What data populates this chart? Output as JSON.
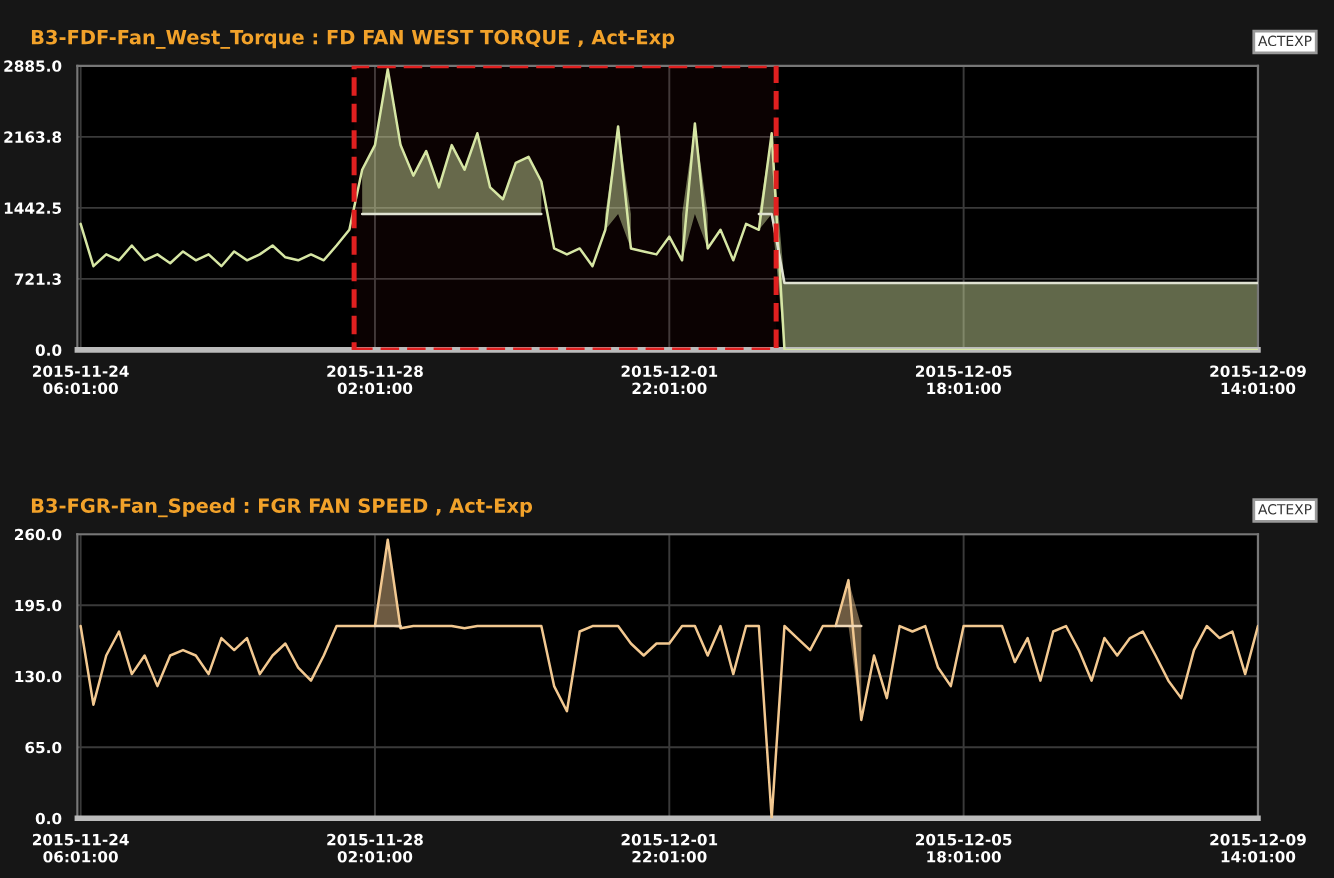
{
  "chart_data": [
    {
      "type": "line",
      "title": "B3-FDF-Fan_West_Torque : FD FAN WEST TORQUE , Act-Exp",
      "annotations": [
        "ACTEXP"
      ],
      "grid": true,
      "x": [
        "2015-11-24T06:01",
        "2015-11-24T10:01",
        "2015-11-24T14:01",
        "2015-11-24T18:01",
        "2015-11-24T22:01",
        "2015-11-25T02:01",
        "2015-11-25T06:01",
        "2015-11-25T10:01",
        "2015-11-25T14:01",
        "2015-11-25T18:01",
        "2015-11-25T22:01",
        "2015-11-26T02:01",
        "2015-11-26T06:01",
        "2015-11-26T10:01",
        "2015-11-26T14:01",
        "2015-11-26T18:01",
        "2015-11-26T22:01",
        "2015-11-27T02:01",
        "2015-11-27T06:01",
        "2015-11-27T10:01",
        "2015-11-27T14:01",
        "2015-11-27T18:01",
        "2015-11-27T22:01",
        "2015-11-28T02:01",
        "2015-11-28T06:01",
        "2015-11-28T10:01",
        "2015-11-28T14:01",
        "2015-11-28T18:01",
        "2015-11-28T22:01",
        "2015-11-29T02:01",
        "2015-11-29T06:01",
        "2015-11-29T10:01",
        "2015-11-29T14:01",
        "2015-11-29T18:01",
        "2015-11-29T22:01",
        "2015-11-30T02:01",
        "2015-11-30T06:01",
        "2015-11-30T10:01",
        "2015-11-30T14:01",
        "2015-11-30T18:01",
        "2015-11-30T22:01",
        "2015-12-01T02:01",
        "2015-12-01T06:01",
        "2015-12-01T10:01",
        "2015-12-01T14:01",
        "2015-12-01T18:01",
        "2015-12-01T22:01",
        "2015-12-02T02:01",
        "2015-12-02T06:01",
        "2015-12-02T10:01",
        "2015-12-02T14:01",
        "2015-12-02T18:01",
        "2015-12-02T22:01",
        "2015-12-03T02:01",
        "2015-12-03T06:01",
        "2015-12-03T10:01",
        "2015-12-03T14:01",
        "2015-12-03T18:01",
        "2015-12-03T22:01",
        "2015-12-04T02:01",
        "2015-12-04T06:01",
        "2015-12-04T10:01",
        "2015-12-04T14:01",
        "2015-12-04T18:01",
        "2015-12-04T22:01",
        "2015-12-05T02:01",
        "2015-12-05T06:01",
        "2015-12-05T10:01",
        "2015-12-05T14:01",
        "2015-12-05T18:01",
        "2015-12-05T22:01",
        "2015-12-06T02:01",
        "2015-12-06T06:01",
        "2015-12-06T10:01",
        "2015-12-06T14:01",
        "2015-12-06T18:01",
        "2015-12-06T22:01",
        "2015-12-07T02:01",
        "2015-12-07T06:01",
        "2015-12-07T10:01",
        "2015-12-07T14:01",
        "2015-12-07T18:01",
        "2015-12-07T22:01",
        "2015-12-08T02:01",
        "2015-12-08T06:01",
        "2015-12-08T10:01",
        "2015-12-08T14:01",
        "2015-12-08T18:01",
        "2015-12-08T22:01",
        "2015-12-09T02:01",
        "2015-12-09T06:01",
        "2015-12-09T10:01",
        "2015-12-09T14:01"
      ],
      "series": [
        {
          "color": "#d6e6a4",
          "values": [
            1280,
            850,
            970,
            910,
            1060,
            910,
            970,
            880,
            1000,
            910,
            970,
            850,
            1000,
            910,
            970,
            1060,
            940,
            910,
            970,
            910,
            1060,
            1220,
            1830,
            2080,
            2850,
            2080,
            1770,
            2020,
            1650,
            2080,
            1830,
            2200,
            1650,
            1530,
            1900,
            1960,
            1710,
            1030,
            970,
            1030,
            850,
            1220,
            2270,
            1030,
            1000,
            970,
            1150,
            910,
            2300,
            1030,
            1220,
            910,
            1280,
            1220,
            2200,
            0,
            0,
            0,
            0,
            0,
            0,
            0,
            0,
            0,
            0,
            0,
            0,
            0,
            0,
            0,
            0,
            0,
            0,
            0,
            0,
            0,
            0,
            0,
            0,
            0,
            0,
            0,
            0,
            0,
            0,
            0,
            0,
            0,
            0,
            0,
            0,
            0,
            0
          ],
          "lower": [
            null,
            null,
            null,
            null,
            null,
            null,
            null,
            null,
            null,
            null,
            null,
            null,
            null,
            null,
            null,
            null,
            null,
            null,
            null,
            null,
            null,
            null,
            1380,
            1380,
            1380,
            1380,
            1380,
            1380,
            1380,
            1380,
            1380,
            1380,
            1380,
            1380,
            1380,
            1380,
            1380,
            null,
            null,
            null,
            null,
            1220,
            1380,
            1030,
            null,
            null,
            null,
            910,
            1380,
            1030,
            null,
            null,
            null,
            1220,
            1380,
            0,
            0,
            0,
            0,
            0,
            0,
            0,
            0,
            0,
            0,
            0,
            0,
            0,
            0,
            0,
            0,
            0,
            0,
            0,
            0,
            0,
            0,
            0,
            0,
            0,
            0,
            0,
            0,
            0,
            0,
            0,
            0,
            0,
            0,
            0,
            0,
            0,
            0
          ],
          "upper": [
            null,
            null,
            null,
            null,
            null,
            null,
            null,
            null,
            null,
            null,
            null,
            null,
            null,
            null,
            null,
            null,
            null,
            null,
            null,
            null,
            null,
            null,
            1830,
            2080,
            2850,
            2080,
            1770,
            2020,
            1650,
            2080,
            1830,
            2200,
            1650,
            1530,
            1900,
            1960,
            1710,
            null,
            null,
            null,
            null,
            1380,
            2270,
            1380,
            null,
            null,
            null,
            1380,
            2300,
            1380,
            null,
            null,
            null,
            1380,
            2200,
            680,
            680,
            680,
            680,
            680,
            680,
            680,
            680,
            680,
            680,
            680,
            680,
            680,
            680,
            680,
            680,
            680,
            680,
            680,
            680,
            680,
            680,
            680,
            680,
            680,
            680,
            680,
            680,
            680,
            680,
            680,
            680,
            680,
            680,
            680,
            680,
            680,
            680
          ]
        },
        {
          "color": "#e0e2d2",
          "values": [
            null,
            null,
            null,
            null,
            null,
            null,
            null,
            null,
            null,
            null,
            null,
            null,
            null,
            null,
            null,
            null,
            null,
            null,
            null,
            null,
            null,
            null,
            1380,
            1380,
            1380,
            1380,
            1380,
            1380,
            1380,
            1380,
            1380,
            1380,
            1380,
            1380,
            1380,
            1380,
            1380,
            null,
            null,
            null,
            null,
            null,
            null,
            null,
            null,
            null,
            null,
            null,
            null,
            null,
            null,
            null,
            null,
            1380,
            1380,
            680,
            680,
            680,
            680,
            680,
            680,
            680,
            680,
            680,
            680,
            680,
            680,
            680,
            680,
            680,
            680,
            680,
            680,
            680,
            680,
            680,
            680,
            680,
            680,
            680,
            680,
            680,
            680,
            680,
            680,
            680,
            680,
            680,
            680,
            680,
            680,
            680,
            680
          ]
        }
      ],
      "bands": [
        {
          "axis": "x",
          "from": "2015-11-27T19:30",
          "to": "2015-12-03T07:25",
          "color": "#e02020"
        }
      ],
      "xlim": [
        "2015-11-24T05:00",
        "2015-12-09T14:01"
      ],
      "xticks": [
        {
          "value": "2015-11-24T06:01",
          "label": "2015-11-24\n06:01:00"
        },
        {
          "value": "2015-11-28T02:01",
          "label": "2015-11-28\n02:01:00"
        },
        {
          "value": "2015-12-01T22:01",
          "label": "2015-12-01\n22:01:00"
        },
        {
          "value": "2015-12-05T18:01",
          "label": "2015-12-05\n18:01:00"
        },
        {
          "value": "2015-12-09T14:01",
          "label": "2015-12-09\n14:01:00"
        }
      ],
      "ylim": [
        0,
        2885
      ],
      "yticks": [
        {
          "value": 0,
          "label": "0.0"
        },
        {
          "value": 721.3,
          "label": "721.3"
        },
        {
          "value": 1442.5,
          "label": "1442.5"
        },
        {
          "value": 2163.8,
          "label": "2163.8"
        },
        {
          "value": 2885,
          "label": "2885.0"
        }
      ]
    },
    {
      "type": "line",
      "title": "B3-FGR-Fan_Speed : FGR FAN SPEED , Act-Exp",
      "annotations": [
        "ACTEXP"
      ],
      "grid": true,
      "x": [
        "2015-11-24T06:01",
        "2015-11-24T10:01",
        "2015-11-24T14:01",
        "2015-11-24T18:01",
        "2015-11-24T22:01",
        "2015-11-25T02:01",
        "2015-11-25T06:01",
        "2015-11-25T10:01",
        "2015-11-25T14:01",
        "2015-11-25T18:01",
        "2015-11-25T22:01",
        "2015-11-26T02:01",
        "2015-11-26T06:01",
        "2015-11-26T10:01",
        "2015-11-26T14:01",
        "2015-11-26T18:01",
        "2015-11-26T22:01",
        "2015-11-27T02:01",
        "2015-11-27T06:01",
        "2015-11-27T10:01",
        "2015-11-27T14:01",
        "2015-11-27T18:01",
        "2015-11-27T22:01",
        "2015-11-28T02:01",
        "2015-11-28T06:01",
        "2015-11-28T10:01",
        "2015-11-28T14:01",
        "2015-11-28T18:01",
        "2015-11-28T22:01",
        "2015-11-29T02:01",
        "2015-11-29T06:01",
        "2015-11-29T10:01",
        "2015-11-29T14:01",
        "2015-11-29T18:01",
        "2015-11-29T22:01",
        "2015-11-30T02:01",
        "2015-11-30T06:01",
        "2015-11-30T10:01",
        "2015-11-30T14:01",
        "2015-11-30T18:01",
        "2015-11-30T22:01",
        "2015-12-01T02:01",
        "2015-12-01T06:01",
        "2015-12-01T10:01",
        "2015-12-01T14:01",
        "2015-12-01T18:01",
        "2015-12-01T22:01",
        "2015-12-02T02:01",
        "2015-12-02T06:01",
        "2015-12-02T10:01",
        "2015-12-02T14:01",
        "2015-12-02T18:01",
        "2015-12-02T22:01",
        "2015-12-03T02:01",
        "2015-12-03T06:01",
        "2015-12-03T10:01",
        "2015-12-03T14:01",
        "2015-12-03T18:01",
        "2015-12-03T22:01",
        "2015-12-04T02:01",
        "2015-12-04T06:01",
        "2015-12-04T10:01",
        "2015-12-04T14:01",
        "2015-12-04T18:01",
        "2015-12-04T22:01",
        "2015-12-05T02:01",
        "2015-12-05T06:01",
        "2015-12-05T10:01",
        "2015-12-05T14:01",
        "2015-12-05T18:01",
        "2015-12-05T22:01",
        "2015-12-06T02:01",
        "2015-12-06T06:01",
        "2015-12-06T10:01",
        "2015-12-06T14:01",
        "2015-12-06T18:01",
        "2015-12-06T22:01",
        "2015-12-07T02:01",
        "2015-12-07T06:01",
        "2015-12-07T10:01",
        "2015-12-07T14:01",
        "2015-12-07T18:01",
        "2015-12-07T22:01",
        "2015-12-08T02:01",
        "2015-12-08T06:01",
        "2015-12-08T10:01",
        "2015-12-08T14:01",
        "2015-12-08T18:01",
        "2015-12-08T22:01",
        "2015-12-09T02:01",
        "2015-12-09T06:01",
        "2015-12-09T10:01",
        "2015-12-09T14:01"
      ],
      "series": [
        {
          "color": "#f2c890",
          "values": [
            176,
            104,
            149,
            171,
            132,
            149,
            121,
            149,
            154,
            149,
            132,
            165,
            154,
            165,
            132,
            149,
            160,
            138,
            126,
            149,
            176,
            176,
            176,
            176,
            255,
            174,
            176,
            176,
            176,
            176,
            174,
            176,
            176,
            176,
            176,
            176,
            176,
            121,
            98,
            171,
            176,
            176,
            176,
            160,
            149,
            160,
            160,
            176,
            176,
            149,
            176,
            132,
            176,
            176,
            0,
            176,
            165,
            154,
            176,
            176,
            218,
            90,
            149,
            110,
            176,
            171,
            176,
            138,
            121,
            176,
            176,
            176,
            176,
            143,
            165,
            126,
            171,
            176,
            154,
            126,
            165,
            149,
            165,
            171,
            149,
            126,
            110,
            154,
            176,
            165,
            171,
            132,
            176
          ],
          "lower": [
            null,
            null,
            null,
            null,
            null,
            null,
            null,
            null,
            null,
            null,
            null,
            null,
            null,
            null,
            null,
            null,
            null,
            null,
            null,
            null,
            null,
            null,
            null,
            176,
            176,
            174,
            null,
            null,
            null,
            null,
            null,
            null,
            null,
            null,
            null,
            null,
            null,
            null,
            null,
            null,
            null,
            null,
            null,
            null,
            null,
            null,
            null,
            null,
            null,
            null,
            null,
            null,
            null,
            null,
            null,
            null,
            null,
            null,
            null,
            176,
            176,
            90,
            null,
            null,
            null,
            null,
            null,
            null,
            null,
            null,
            null,
            null,
            null,
            null,
            null,
            null,
            null,
            null,
            null,
            null,
            null,
            null,
            null,
            null,
            null,
            null,
            null,
            null,
            null,
            null,
            null,
            null,
            null
          ],
          "upper": [
            null,
            null,
            null,
            null,
            null,
            null,
            null,
            null,
            null,
            null,
            null,
            null,
            null,
            null,
            null,
            null,
            null,
            null,
            null,
            null,
            null,
            null,
            null,
            176,
            255,
            176,
            null,
            null,
            null,
            null,
            null,
            null,
            null,
            null,
            null,
            null,
            null,
            null,
            null,
            null,
            null,
            null,
            null,
            null,
            null,
            null,
            null,
            null,
            null,
            null,
            null,
            null,
            null,
            null,
            null,
            null,
            null,
            null,
            null,
            176,
            218,
            176,
            null,
            null,
            null,
            null,
            null,
            null,
            null,
            null,
            null,
            null,
            null,
            null,
            null,
            null,
            null,
            null,
            null,
            null,
            null,
            null,
            null,
            null,
            null,
            null,
            null,
            null,
            null,
            null,
            null,
            null,
            null
          ]
        },
        {
          "color": "#f0d8b8",
          "values": [
            null,
            null,
            null,
            null,
            null,
            null,
            null,
            null,
            null,
            null,
            null,
            null,
            null,
            null,
            null,
            null,
            null,
            null,
            null,
            null,
            null,
            null,
            null,
            176,
            176,
            176,
            null,
            null,
            null,
            null,
            null,
            null,
            null,
            null,
            null,
            null,
            null,
            null,
            null,
            null,
            null,
            null,
            null,
            null,
            null,
            null,
            null,
            null,
            null,
            null,
            null,
            null,
            null,
            null,
            null,
            null,
            null,
            null,
            null,
            176,
            176,
            176,
            null,
            null,
            null,
            null,
            null,
            null,
            null,
            null,
            null,
            null,
            null,
            null,
            null,
            null,
            null,
            null,
            null,
            null,
            null,
            null,
            null,
            null,
            null,
            null,
            null,
            null,
            null,
            null,
            null,
            null,
            null
          ]
        }
      ],
      "xlim": [
        "2015-11-24T05:00",
        "2015-12-09T14:01"
      ],
      "xticks": [
        {
          "value": "2015-11-24T06:01",
          "label": "2015-11-24\n06:01:00"
        },
        {
          "value": "2015-11-28T02:01",
          "label": "2015-11-28\n02:01:00"
        },
        {
          "value": "2015-12-01T22:01",
          "label": "2015-12-01\n22:01:00"
        },
        {
          "value": "2015-12-05T18:01",
          "label": "2015-12-05\n18:01:00"
        },
        {
          "value": "2015-12-09T14:01",
          "label": "2015-12-09\n14:01:00"
        }
      ],
      "ylim": [
        0,
        260
      ],
      "yticks": [
        {
          "value": 0,
          "label": "0.0"
        },
        {
          "value": 65,
          "label": "65.0"
        },
        {
          "value": 130,
          "label": "130.0"
        },
        {
          "value": 195,
          "label": "195.0"
        },
        {
          "value": 260,
          "label": "260.0"
        }
      ]
    }
  ]
}
